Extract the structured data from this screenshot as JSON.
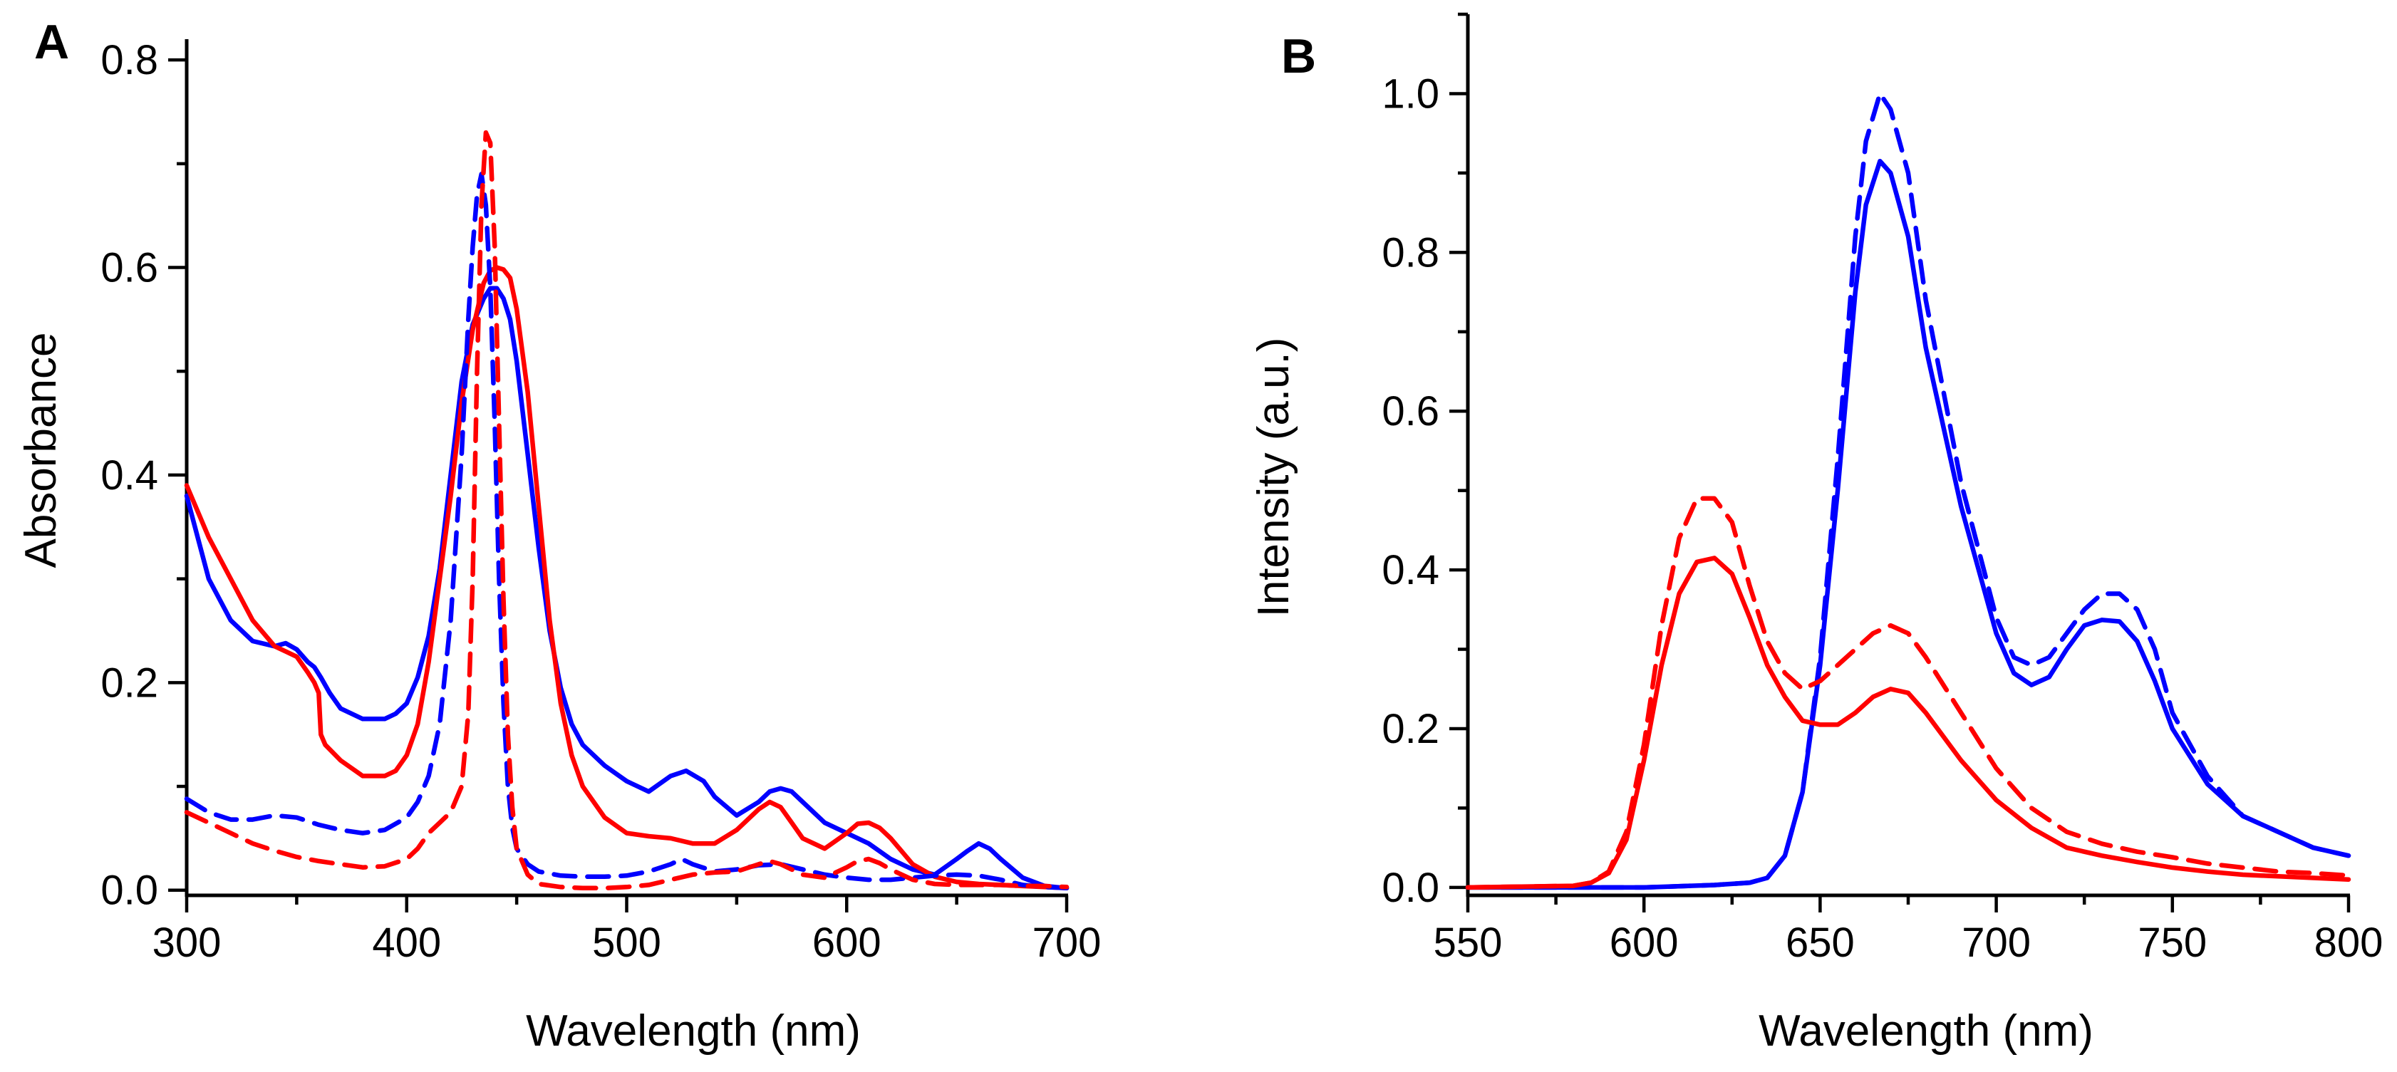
{
  "chart_data": [
    {
      "type": "line",
      "panel_label": "A",
      "xlabel": "Wavelength (nm)",
      "ylabel": "Absorbance",
      "xlim": [
        300,
        700
      ],
      "ylim": [
        -0.005,
        0.82
      ],
      "xticks": [
        300,
        400,
        500,
        600,
        700
      ],
      "xtick_labels": [
        "300",
        "400",
        "500",
        "600",
        "700"
      ],
      "xminor": [
        350,
        450,
        550,
        650
      ],
      "yticks": [
        0.0,
        0.2,
        0.4,
        0.6,
        0.8
      ],
      "ytick_labels": [
        "0.0",
        "0.2",
        "0.4",
        "0.6",
        "0.8"
      ],
      "yminor": [
        0.1,
        0.3,
        0.5,
        0.7
      ],
      "series": [
        {
          "name": "blue-solid",
          "color": "#0000ff",
          "style": "solid",
          "x": [
            300,
            310,
            320,
            330,
            340,
            345,
            350,
            355,
            358,
            361,
            365,
            370,
            380,
            390,
            395,
            400,
            405,
            410,
            415,
            420,
            425,
            430,
            435,
            438,
            441,
            444,
            447,
            450,
            455,
            460,
            465,
            470,
            475,
            480,
            490,
            500,
            510,
            520,
            527,
            535,
            540,
            550,
            560,
            565,
            570,
            575,
            580,
            590,
            600,
            610,
            620,
            630,
            640,
            650,
            655,
            660,
            665,
            670,
            680,
            690,
            700
          ],
          "y": [
            0.38,
            0.3,
            0.26,
            0.24,
            0.235,
            0.238,
            0.232,
            0.22,
            0.215,
            0.205,
            0.19,
            0.175,
            0.165,
            0.165,
            0.17,
            0.18,
            0.205,
            0.245,
            0.31,
            0.4,
            0.49,
            0.545,
            0.57,
            0.58,
            0.58,
            0.57,
            0.55,
            0.51,
            0.42,
            0.33,
            0.25,
            0.195,
            0.16,
            0.14,
            0.12,
            0.105,
            0.095,
            0.11,
            0.115,
            0.105,
            0.09,
            0.072,
            0.085,
            0.095,
            0.098,
            0.095,
            0.085,
            0.065,
            0.055,
            0.045,
            0.03,
            0.02,
            0.015,
            0.03,
            0.038,
            0.045,
            0.04,
            0.03,
            0.012,
            0.004,
            0.002
          ]
        },
        {
          "name": "red-solid",
          "color": "#ff0000",
          "style": "solid",
          "x": [
            300,
            310,
            320,
            330,
            340,
            345,
            350,
            355,
            358,
            360,
            361,
            363,
            370,
            380,
            390,
            395,
            400,
            405,
            410,
            415,
            420,
            425,
            430,
            435,
            438,
            441,
            444,
            447,
            450,
            455,
            460,
            465,
            470,
            475,
            480,
            490,
            500,
            510,
            520,
            530,
            540,
            550,
            560,
            565,
            570,
            575,
            580,
            590,
            600,
            605,
            610,
            615,
            620,
            630,
            640,
            650,
            660,
            670,
            680,
            690,
            700
          ],
          "y": [
            0.39,
            0.34,
            0.3,
            0.26,
            0.235,
            0.23,
            0.225,
            0.21,
            0.2,
            0.19,
            0.15,
            0.14,
            0.125,
            0.11,
            0.11,
            0.115,
            0.13,
            0.16,
            0.22,
            0.3,
            0.38,
            0.47,
            0.54,
            0.585,
            0.597,
            0.6,
            0.598,
            0.59,
            0.56,
            0.48,
            0.37,
            0.26,
            0.18,
            0.13,
            0.1,
            0.07,
            0.055,
            0.052,
            0.05,
            0.045,
            0.045,
            0.058,
            0.078,
            0.085,
            0.08,
            0.065,
            0.05,
            0.04,
            0.055,
            0.064,
            0.065,
            0.06,
            0.05,
            0.025,
            0.013,
            0.008,
            0.006,
            0.005,
            0.004,
            0.003,
            0.002
          ]
        },
        {
          "name": "blue-dashed",
          "color": "#0000ff",
          "style": "dashed",
          "x": [
            300,
            310,
            320,
            330,
            340,
            350,
            360,
            370,
            380,
            390,
            400,
            405,
            410,
            415,
            420,
            425,
            428,
            430,
            432,
            434,
            436,
            438,
            440,
            442,
            444,
            446,
            448,
            450,
            455,
            460,
            470,
            480,
            490,
            500,
            510,
            520,
            525,
            530,
            540,
            550,
            560,
            570,
            580,
            590,
            600,
            610,
            620,
            630,
            640,
            650,
            660,
            670,
            680,
            690,
            700
          ],
          "y": [
            0.088,
            0.075,
            0.068,
            0.068,
            0.072,
            0.07,
            0.063,
            0.058,
            0.055,
            0.058,
            0.07,
            0.085,
            0.11,
            0.16,
            0.26,
            0.42,
            0.55,
            0.62,
            0.67,
            0.69,
            0.66,
            0.58,
            0.45,
            0.3,
            0.18,
            0.1,
            0.06,
            0.04,
            0.025,
            0.018,
            0.014,
            0.013,
            0.013,
            0.014,
            0.018,
            0.025,
            0.03,
            0.025,
            0.018,
            0.02,
            0.024,
            0.025,
            0.02,
            0.015,
            0.012,
            0.01,
            0.01,
            0.012,
            0.014,
            0.015,
            0.014,
            0.01,
            0.005,
            0.003,
            0.002
          ]
        },
        {
          "name": "red-dashed",
          "color": "#ff0000",
          "style": "dashed",
          "x": [
            300,
            310,
            320,
            330,
            340,
            350,
            360,
            370,
            380,
            390,
            400,
            405,
            410,
            415,
            420,
            425,
            428,
            430,
            432,
            434,
            436,
            438,
            440,
            442,
            444,
            446,
            448,
            450,
            455,
            460,
            470,
            480,
            490,
            500,
            510,
            520,
            530,
            540,
            550,
            560,
            565,
            570,
            580,
            590,
            600,
            605,
            610,
            615,
            620,
            630,
            640,
            650,
            660,
            670,
            680,
            690,
            700
          ],
          "y": [
            0.075,
            0.065,
            0.055,
            0.045,
            0.038,
            0.032,
            0.028,
            0.025,
            0.022,
            0.023,
            0.03,
            0.04,
            0.055,
            0.065,
            0.075,
            0.1,
            0.17,
            0.3,
            0.5,
            0.66,
            0.73,
            0.72,
            0.62,
            0.45,
            0.28,
            0.15,
            0.08,
            0.04,
            0.015,
            0.006,
            0.003,
            0.002,
            0.002,
            0.003,
            0.005,
            0.01,
            0.015,
            0.017,
            0.018,
            0.025,
            0.028,
            0.025,
            0.015,
            0.012,
            0.022,
            0.028,
            0.03,
            0.026,
            0.02,
            0.01,
            0.006,
            0.005,
            0.005,
            0.005,
            0.004,
            0.004,
            0.003
          ]
        }
      ]
    },
    {
      "type": "line",
      "panel_label": "B",
      "xlabel": "Wavelength (nm)",
      "ylabel": "Intensity (a.u.)",
      "xlim": [
        550,
        800
      ],
      "ylim": [
        -0.01,
        1.1
      ],
      "xticks": [
        550,
        600,
        650,
        700,
        750,
        800
      ],
      "xtick_labels": [
        "550",
        "600",
        "650",
        "700",
        "750",
        "800"
      ],
      "xminor": [
        575,
        625,
        675,
        725,
        775
      ],
      "yticks": [
        0.0,
        0.2,
        0.4,
        0.6,
        0.8,
        1.0
      ],
      "ytick_labels": [
        "0.0",
        "0.2",
        "0.4",
        "0.6",
        "0.8",
        "1.0"
      ],
      "yminor": [
        0.1,
        0.3,
        0.5,
        0.7,
        0.9,
        1.1
      ],
      "series": [
        {
          "name": "blue-solid",
          "color": "#0000ff",
          "style": "solid",
          "x": [
            550,
            600,
            620,
            630,
            635,
            640,
            645,
            650,
            655,
            660,
            663,
            667,
            670,
            675,
            680,
            690,
            700,
            705,
            710,
            715,
            720,
            725,
            730,
            735,
            740,
            745,
            750,
            760,
            770,
            780,
            790,
            800
          ],
          "y": [
            0.0,
            0.0,
            0.003,
            0.006,
            0.012,
            0.04,
            0.12,
            0.28,
            0.5,
            0.75,
            0.86,
            0.915,
            0.9,
            0.82,
            0.68,
            0.48,
            0.32,
            0.27,
            0.255,
            0.265,
            0.3,
            0.33,
            0.337,
            0.335,
            0.31,
            0.26,
            0.2,
            0.13,
            0.09,
            0.07,
            0.05,
            0.04
          ]
        },
        {
          "name": "blue-dashed",
          "color": "#0000ff",
          "style": "dashed",
          "x": [
            550,
            600,
            620,
            630,
            635,
            640,
            645,
            650,
            655,
            660,
            663,
            667,
            670,
            675,
            680,
            690,
            700,
            705,
            710,
            715,
            720,
            725,
            730,
            735,
            740,
            745,
            750,
            760,
            770,
            780,
            790,
            800
          ],
          "y": [
            0.0,
            0.0,
            0.003,
            0.006,
            0.012,
            0.04,
            0.12,
            0.29,
            0.54,
            0.82,
            0.94,
            1.0,
            0.98,
            0.9,
            0.74,
            0.51,
            0.34,
            0.29,
            0.28,
            0.29,
            0.32,
            0.35,
            0.37,
            0.37,
            0.35,
            0.3,
            0.22,
            0.14,
            0.09,
            0.07,
            0.05,
            0.04
          ]
        },
        {
          "name": "red-solid",
          "color": "#ff0000",
          "style": "solid",
          "x": [
            550,
            580,
            585,
            590,
            595,
            600,
            605,
            610,
            615,
            620,
            625,
            630,
            635,
            640,
            645,
            650,
            655,
            660,
            665,
            670,
            675,
            680,
            690,
            700,
            710,
            720,
            730,
            740,
            750,
            760,
            770,
            780,
            790,
            800
          ],
          "y": [
            0.0,
            0.002,
            0.006,
            0.018,
            0.06,
            0.16,
            0.28,
            0.37,
            0.41,
            0.415,
            0.395,
            0.34,
            0.28,
            0.24,
            0.21,
            0.205,
            0.205,
            0.22,
            0.24,
            0.25,
            0.245,
            0.22,
            0.16,
            0.11,
            0.075,
            0.05,
            0.04,
            0.032,
            0.025,
            0.02,
            0.016,
            0.014,
            0.012,
            0.01
          ]
        },
        {
          "name": "red-dashed",
          "color": "#ff0000",
          "style": "dashed",
          "x": [
            550,
            580,
            585,
            590,
            595,
            600,
            605,
            610,
            615,
            620,
            625,
            630,
            635,
            640,
            645,
            650,
            655,
            660,
            665,
            670,
            675,
            680,
            690,
            700,
            710,
            720,
            730,
            740,
            750,
            760,
            770,
            780,
            790,
            800
          ],
          "y": [
            0.0,
            0.002,
            0.006,
            0.02,
            0.07,
            0.18,
            0.33,
            0.44,
            0.49,
            0.49,
            0.46,
            0.38,
            0.31,
            0.27,
            0.25,
            0.26,
            0.28,
            0.3,
            0.32,
            0.33,
            0.32,
            0.29,
            0.22,
            0.15,
            0.1,
            0.07,
            0.055,
            0.045,
            0.038,
            0.03,
            0.025,
            0.02,
            0.018,
            0.015
          ]
        }
      ]
    }
  ]
}
